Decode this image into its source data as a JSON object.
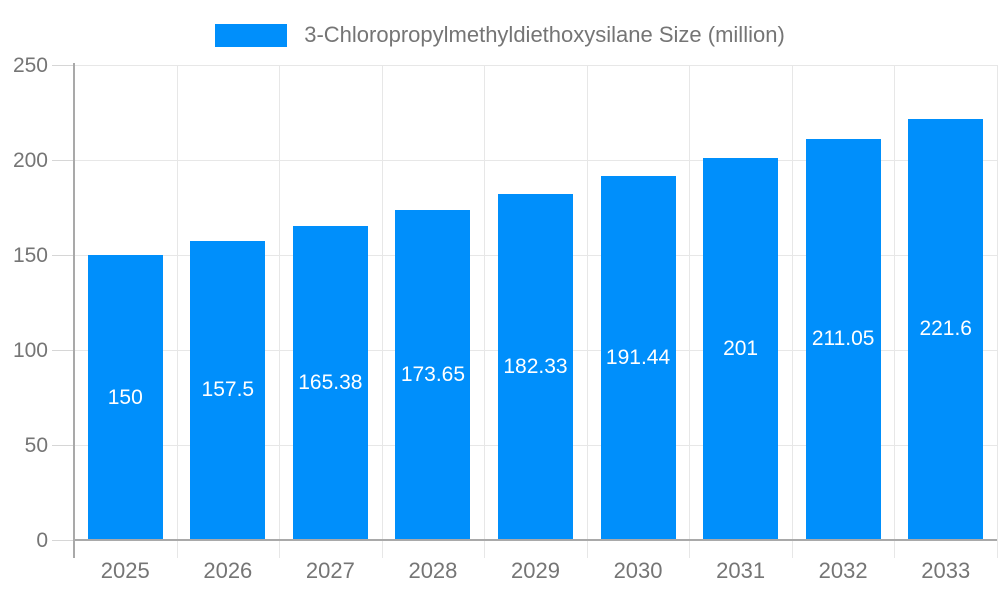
{
  "chart_data": {
    "type": "bar",
    "title": "3-Chloropropylmethyldiethoxysilane Size (million)",
    "legend_position": "top",
    "categories": [
      "2025",
      "2026",
      "2027",
      "2028",
      "2029",
      "2030",
      "2031",
      "2032",
      "2033"
    ],
    "series": [
      {
        "name": "3-Chloropropylmethyldiethoxysilane Size (million)",
        "values": [
          150,
          157.5,
          165.38,
          173.65,
          182.33,
          191.44,
          201,
          211.05,
          221.6
        ],
        "labels": [
          "150",
          "157.5",
          "165.38",
          "173.65",
          "182.33",
          "191.44",
          "201",
          "211.05",
          "221.6"
        ]
      }
    ],
    "xlabel": "",
    "ylabel": "",
    "ylim": [
      0,
      250
    ],
    "yticks": [
      0,
      50,
      100,
      150,
      200,
      250
    ],
    "grid": true,
    "value_labels_inside_bars": true,
    "colors": {
      "bar": "#008FFB",
      "bar_label": "#ffffff",
      "axis_text": "#757575",
      "legend_text": "#757575",
      "gridline": "#e7e7e7",
      "tick": "#d6d6d6",
      "axis_line": "#a9a9a9",
      "background": "#ffffff"
    }
  }
}
